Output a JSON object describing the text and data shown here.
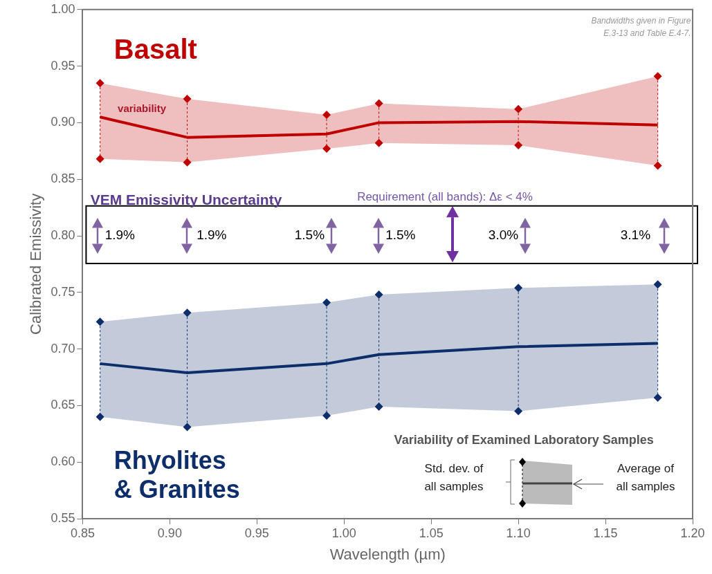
{
  "chart_data": {
    "type": "line",
    "xlabel": "Wavelength (µm)",
    "ylabel": "Calibrated Emissivity",
    "xlim": [
      0.85,
      1.2
    ],
    "ylim": [
      0.55,
      1.0
    ],
    "xticks": [
      {
        "value": 0.85,
        "label": "0.85"
      },
      {
        "value": 0.9,
        "label": "0.90"
      },
      {
        "value": 0.95,
        "label": "0.95"
      },
      {
        "value": 1.0,
        "label": "1.00"
      },
      {
        "value": 1.05,
        "label": "1.05"
      },
      {
        "value": 1.1,
        "label": "1.10"
      },
      {
        "value": 1.15,
        "label": "1.15"
      },
      {
        "value": 1.2,
        "label": "1.20"
      }
    ],
    "yticks": [
      {
        "value": 0.55,
        "label": "0.55"
      },
      {
        "value": 0.6,
        "label": "0.60"
      },
      {
        "value": 0.65,
        "label": "0.65"
      },
      {
        "value": 0.7,
        "label": "0.70"
      },
      {
        "value": 0.75,
        "label": "0.75"
      },
      {
        "value": 0.8,
        "label": "0.80"
      },
      {
        "value": 0.85,
        "label": "0.85"
      },
      {
        "value": 0.9,
        "label": "0.90"
      },
      {
        "value": 0.95,
        "label": "0.95"
      },
      {
        "value": 1.0,
        "label": "1.00"
      }
    ],
    "x": [
      0.86,
      0.91,
      0.99,
      1.02,
      1.1,
      1.18
    ],
    "grid": false,
    "series": [
      {
        "name": "Basalt",
        "color": "#c00000",
        "values": [
          0.905,
          0.887,
          0.89,
          0.9,
          0.901,
          0.898
        ],
        "lower": [
          0.868,
          0.865,
          0.877,
          0.882,
          0.88,
          0.862
        ],
        "upper": [
          0.935,
          0.921,
          0.907,
          0.917,
          0.912,
          0.941
        ],
        "errors": [
          [
            0.868,
            0.935
          ],
          [
            0.865,
            0.921
          ],
          [
            0.877,
            0.907
          ],
          [
            0.882,
            0.917
          ],
          [
            0.88,
            0.912
          ],
          [
            0.862,
            0.941
          ]
        ]
      },
      {
        "name": "Rhyolites & Granites",
        "color": "#0d2d6b",
        "values": [
          0.687,
          0.679,
          0.687,
          0.695,
          0.702,
          0.705
        ],
        "lower": [
          0.64,
          0.631,
          0.641,
          0.649,
          0.645,
          0.657
        ],
        "upper": [
          0.724,
          0.732,
          0.741,
          0.748,
          0.754,
          0.757
        ],
        "errors": [
          [
            0.64,
            0.724
          ],
          [
            0.631,
            0.732
          ],
          [
            0.641,
            0.741
          ],
          [
            0.649,
            0.748
          ],
          [
            0.645,
            0.754
          ],
          [
            0.657,
            0.757
          ]
        ]
      },
      {
        "type": "scatter",
        "marker": "diamond",
        "color": "#c00000",
        "values": [
          0.935,
          0.921,
          0.907,
          0.917,
          0.912,
          0.941
        ]
      },
      {
        "type": "scatter",
        "marker": "diamond",
        "color": "#c00000",
        "values": [
          0.868,
          0.865,
          0.877,
          0.882,
          0.88,
          0.862
        ]
      },
      {
        "type": "scatter",
        "marker": "diamond",
        "color": "#0d2d6b",
        "values": [
          0.724,
          0.732,
          0.741,
          0.748,
          0.754,
          0.757
        ]
      },
      {
        "type": "scatter",
        "marker": "diamond",
        "color": "#0d2d6b",
        "values": [
          0.64,
          0.631,
          0.641,
          0.649,
          0.645,
          0.657
        ]
      }
    ],
    "annotations": [
      "variability",
      "VEM Emissivity Uncertainty",
      "Requirement (all bands): Δε < 4%",
      "Bandwidths given in Figure E.3-13 and Table E.4-7.",
      "Variability of Examined Laboratory Samples",
      "Std. dev. of all samples",
      "Average of all samples",
      "1.9%",
      "1.9%",
      "1.5%",
      "1.5%",
      "3.0%",
      "3.1%"
    ]
  }
}
